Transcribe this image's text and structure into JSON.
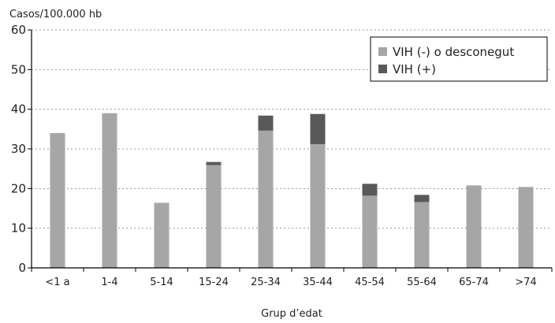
{
  "chart_data": {
    "type": "bar",
    "stacked": true,
    "ylabel": "Casos/100.000 hb",
    "xlabel": "Grup d’edat",
    "ylim": [
      0,
      60
    ],
    "yticks": [
      0,
      10,
      20,
      30,
      40,
      50,
      60
    ],
    "grid": "horizontal dashed",
    "legend_position": "top-right",
    "categories": [
      "<1 a",
      "1-4",
      "5-14",
      "15-24",
      "25-34",
      "35-44",
      "45-54",
      "55-64",
      "65-74",
      ">74"
    ],
    "series": [
      {
        "name": "VIH (-) o desconegut",
        "color": "#a6a6a6",
        "values": [
          34.0,
          39.0,
          16.4,
          25.9,
          34.6,
          31.2,
          18.2,
          16.6,
          20.8,
          20.4
        ]
      },
      {
        "name": "VIH (+)",
        "color": "#595959",
        "values": [
          0,
          0,
          0,
          0.8,
          3.8,
          7.6,
          3.0,
          1.8,
          0,
          0
        ]
      }
    ]
  }
}
